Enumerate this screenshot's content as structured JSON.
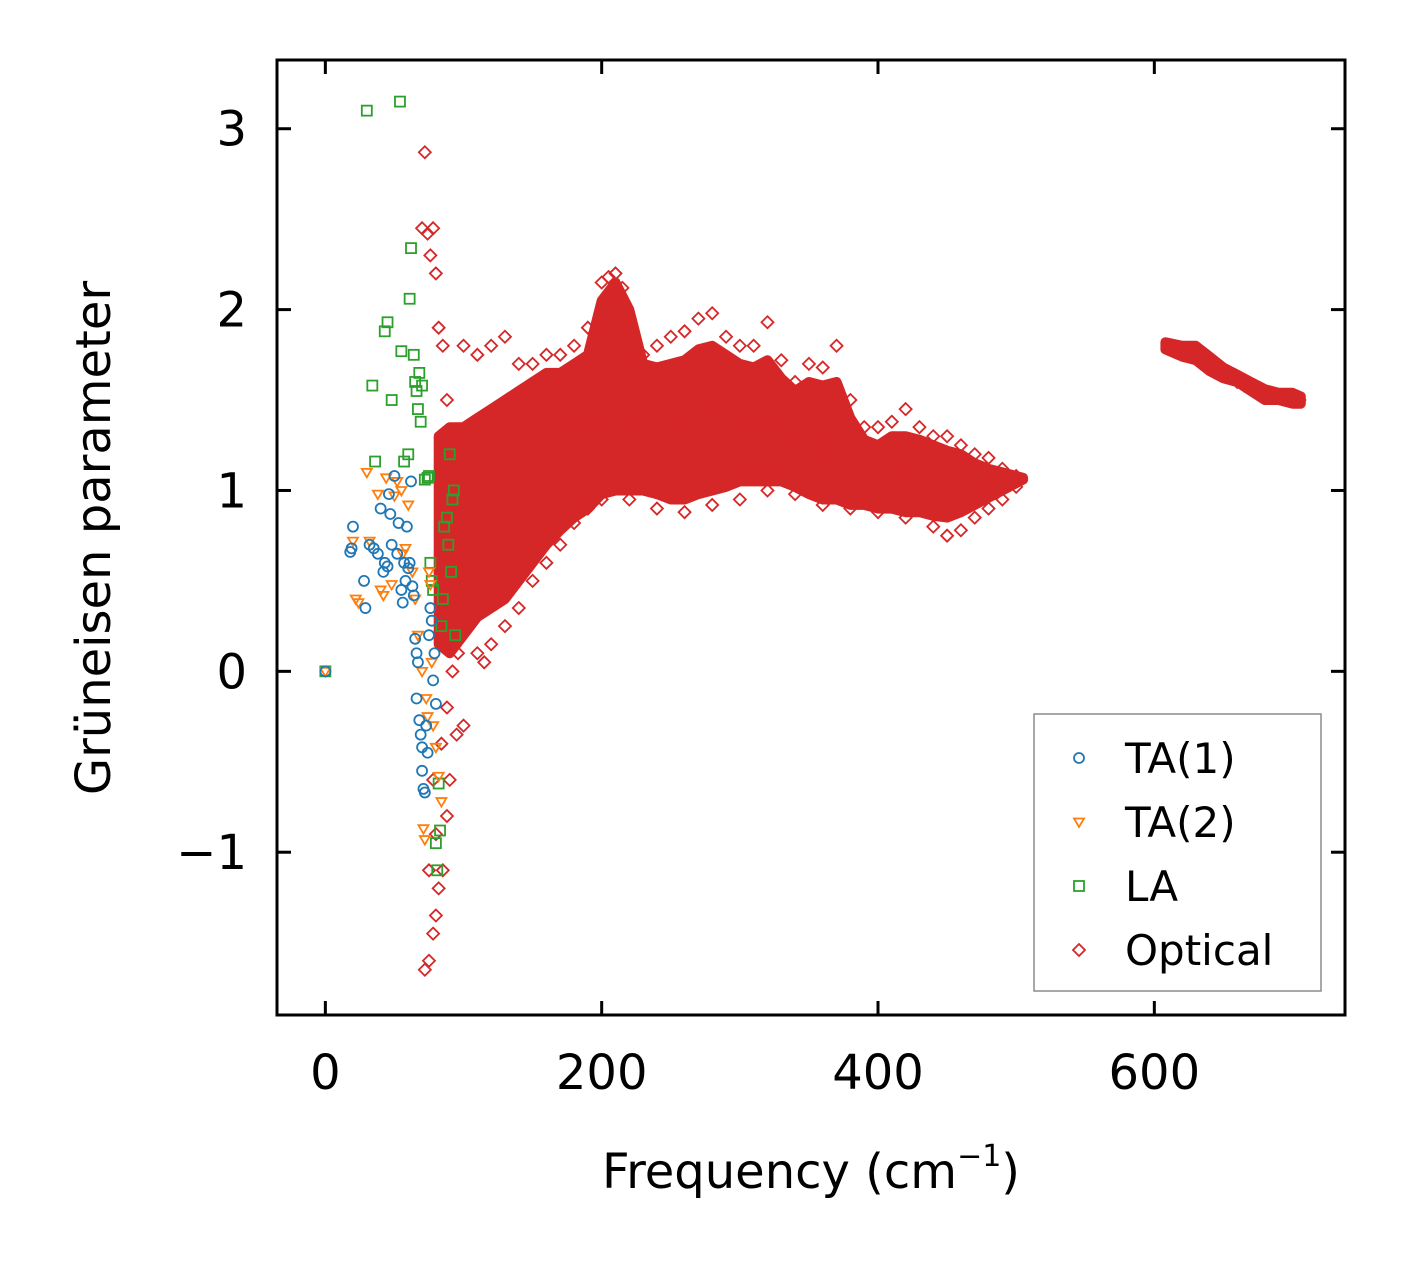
{
  "chart_data": {
    "type": "scatter",
    "title": "",
    "xlabel": "Frequency (cm",
    "xlabel_sup": "−1",
    "xlabel_end": ")",
    "ylabel": "Grüneisen parameter",
    "xlim": [
      -35,
      738
    ],
    "ylim": [
      -1.9,
      3.38
    ],
    "xticks": [
      0,
      200,
      400,
      600
    ],
    "xtick_labels": [
      "0",
      "200",
      "400",
      "600"
    ],
    "yticks": [
      -1,
      0,
      1,
      2,
      3
    ],
    "ytick_labels": [
      "−1",
      "0",
      "1",
      "2",
      "3"
    ],
    "grid": false,
    "legend_position": "lower-right",
    "series": [
      {
        "name": "TA(1)",
        "marker": "circle",
        "color": "#1f77b4",
        "points": [
          [
            0,
            0
          ],
          [
            18,
            0.66
          ],
          [
            19,
            0.68
          ],
          [
            20,
            0.8
          ],
          [
            28,
            0.5
          ],
          [
            29,
            0.35
          ],
          [
            32,
            0.7
          ],
          [
            35,
            0.68
          ],
          [
            38,
            0.65
          ],
          [
            40,
            0.9
          ],
          [
            42,
            0.55
          ],
          [
            43,
            0.6
          ],
          [
            45,
            0.58
          ],
          [
            46,
            0.98
          ],
          [
            47,
            0.87
          ],
          [
            48,
            0.7
          ],
          [
            50,
            1.08
          ],
          [
            52,
            0.65
          ],
          [
            53,
            0.82
          ],
          [
            55,
            0.45
          ],
          [
            56,
            0.38
          ],
          [
            57,
            0.6
          ],
          [
            58,
            0.5
          ],
          [
            59,
            0.8
          ],
          [
            60,
            0.57
          ],
          [
            61,
            0.6
          ],
          [
            62,
            1.05
          ],
          [
            63,
            0.47
          ],
          [
            64,
            0.42
          ],
          [
            65,
            0.18
          ],
          [
            66,
            0.1
          ],
          [
            66,
            -0.15
          ],
          [
            67,
            0.05
          ],
          [
            68,
            -0.27
          ],
          [
            69,
            -0.35
          ],
          [
            70,
            -0.42
          ],
          [
            70,
            -0.55
          ],
          [
            71,
            -0.65
          ],
          [
            72,
            -0.67
          ],
          [
            73,
            -0.3
          ],
          [
            74,
            -0.45
          ],
          [
            75,
            0.2
          ],
          [
            76,
            0.35
          ],
          [
            77,
            0.28
          ],
          [
            78,
            -0.05
          ],
          [
            79,
            0.1
          ],
          [
            80,
            -0.18
          ]
        ]
      },
      {
        "name": "TA(2)",
        "marker": "triangle-down",
        "color": "#ff7f0e",
        "points": [
          [
            0,
            0
          ],
          [
            20,
            0.72
          ],
          [
            22,
            0.4
          ],
          [
            24,
            0.38
          ],
          [
            30,
            1.1
          ],
          [
            32,
            0.72
          ],
          [
            38,
            0.98
          ],
          [
            40,
            0.45
          ],
          [
            42,
            0.42
          ],
          [
            44,
            1.07
          ],
          [
            48,
            0.48
          ],
          [
            50,
            0.97
          ],
          [
            52,
            1.05
          ],
          [
            55,
            1.0
          ],
          [
            56,
            0.65
          ],
          [
            58,
            0.68
          ],
          [
            60,
            0.92
          ],
          [
            63,
            0.55
          ],
          [
            65,
            0.4
          ],
          [
            67,
            0.2
          ],
          [
            70,
            0.0
          ],
          [
            71,
            -0.87
          ],
          [
            72,
            -0.93
          ],
          [
            73,
            -0.15
          ],
          [
            74,
            -0.25
          ],
          [
            75,
            0.55
          ],
          [
            76,
            0.48
          ],
          [
            77,
            0.05
          ],
          [
            78,
            -0.3
          ],
          [
            80,
            -0.42
          ],
          [
            82,
            -0.58
          ],
          [
            84,
            -0.72
          ]
        ]
      },
      {
        "name": "LA",
        "marker": "square",
        "color": "#2ca02c",
        "points": [
          [
            0,
            0
          ],
          [
            30,
            3.1
          ],
          [
            34,
            1.58
          ],
          [
            36,
            1.16
          ],
          [
            43,
            1.88
          ],
          [
            45,
            1.93
          ],
          [
            48,
            1.5
          ],
          [
            54,
            3.15
          ],
          [
            55,
            1.77
          ],
          [
            57,
            1.16
          ],
          [
            60,
            1.2
          ],
          [
            61,
            2.06
          ],
          [
            62,
            2.34
          ],
          [
            64,
            1.75
          ],
          [
            65,
            1.6
          ],
          [
            66,
            1.55
          ],
          [
            67,
            1.45
          ],
          [
            68,
            1.65
          ],
          [
            69,
            1.38
          ],
          [
            70,
            1.58
          ],
          [
            72,
            1.06
          ],
          [
            74,
            1.07
          ],
          [
            75,
            1.08
          ],
          [
            76,
            0.6
          ],
          [
            77,
            0.5
          ],
          [
            78,
            0.45
          ],
          [
            80,
            -0.95
          ],
          [
            81,
            -1.1
          ],
          [
            82,
            -0.62
          ],
          [
            83,
            -0.88
          ],
          [
            84,
            0.25
          ],
          [
            85,
            0.4
          ],
          [
            86,
            0.8
          ],
          [
            88,
            0.85
          ],
          [
            89,
            0.7
          ],
          [
            90,
            1.2
          ],
          [
            91,
            0.55
          ],
          [
            92,
            0.95
          ],
          [
            93,
            1.0
          ],
          [
            94,
            0.2
          ]
        ]
      },
      {
        "name": "Optical",
        "marker": "diamond",
        "color": "#d62728",
        "points": [
          [
            72,
            2.87
          ],
          [
            70,
            2.45
          ],
          [
            74,
            2.42
          ],
          [
            76,
            2.3
          ],
          [
            78,
            2.45
          ],
          [
            80,
            2.2
          ],
          [
            82,
            1.9
          ],
          [
            85,
            1.8
          ],
          [
            88,
            1.5
          ],
          [
            90,
            1.3
          ],
          [
            72,
            -1.65
          ],
          [
            75,
            -1.6
          ],
          [
            78,
            -1.45
          ],
          [
            80,
            -1.35
          ],
          [
            82,
            -1.2
          ],
          [
            85,
            -1.1
          ],
          [
            88,
            -0.8
          ],
          [
            90,
            -0.6
          ],
          [
            95,
            -0.35
          ],
          [
            100,
            -0.3
          ],
          [
            75,
            -1.1
          ],
          [
            80,
            -0.9
          ],
          [
            78,
            -0.6
          ],
          [
            84,
            -0.4
          ],
          [
            88,
            -0.2
          ],
          [
            92,
            0.0
          ],
          [
            96,
            0.1
          ],
          [
            100,
            1.8
          ],
          [
            110,
            1.75
          ],
          [
            120,
            1.8
          ],
          [
            130,
            1.85
          ],
          [
            140,
            1.7
          ],
          [
            150,
            1.7
          ],
          [
            160,
            1.75
          ],
          [
            170,
            1.75
          ],
          [
            180,
            1.8
          ],
          [
            190,
            1.9
          ],
          [
            200,
            2.15
          ],
          [
            205,
            2.18
          ],
          [
            210,
            2.2
          ],
          [
            215,
            2.12
          ],
          [
            220,
            1.9
          ],
          [
            230,
            1.75
          ],
          [
            240,
            1.8
          ],
          [
            250,
            1.85
          ],
          [
            260,
            1.88
          ],
          [
            270,
            1.95
          ],
          [
            280,
            1.98
          ],
          [
            290,
            1.85
          ],
          [
            300,
            1.8
          ],
          [
            310,
            1.8
          ],
          [
            320,
            1.93
          ],
          [
            330,
            1.72
          ],
          [
            340,
            1.6
          ],
          [
            350,
            1.7
          ],
          [
            360,
            1.68
          ],
          [
            370,
            1.8
          ],
          [
            380,
            1.5
          ],
          [
            390,
            1.35
          ],
          [
            400,
            1.35
          ],
          [
            410,
            1.38
          ],
          [
            420,
            1.45
          ],
          [
            430,
            1.35
          ],
          [
            440,
            1.3
          ],
          [
            450,
            1.3
          ],
          [
            460,
            1.25
          ],
          [
            470,
            1.2
          ],
          [
            480,
            1.18
          ],
          [
            490,
            1.12
          ],
          [
            500,
            1.08
          ],
          [
            110,
            0.1
          ],
          [
            115,
            0.05
          ],
          [
            120,
            0.15
          ],
          [
            130,
            0.25
          ],
          [
            140,
            0.35
          ],
          [
            150,
            0.5
          ],
          [
            160,
            0.6
          ],
          [
            170,
            0.7
          ],
          [
            180,
            0.82
          ],
          [
            190,
            0.9
          ],
          [
            200,
            0.95
          ],
          [
            220,
            0.95
          ],
          [
            240,
            0.9
          ],
          [
            260,
            0.88
          ],
          [
            280,
            0.92
          ],
          [
            300,
            0.95
          ],
          [
            320,
            1.0
          ],
          [
            340,
            0.98
          ],
          [
            360,
            0.92
          ],
          [
            380,
            0.9
          ],
          [
            400,
            0.88
          ],
          [
            420,
            0.85
          ],
          [
            440,
            0.8
          ],
          [
            450,
            0.75
          ],
          [
            460,
            0.78
          ],
          [
            470,
            0.85
          ],
          [
            480,
            0.9
          ],
          [
            490,
            0.95
          ],
          [
            500,
            1.02
          ],
          [
            140,
            1.3
          ],
          [
            160,
            1.3
          ],
          [
            180,
            1.35
          ],
          [
            200,
            1.35
          ],
          [
            220,
            1.4
          ],
          [
            240,
            1.4
          ],
          [
            260,
            1.35
          ],
          [
            280,
            1.45
          ],
          [
            300,
            1.4
          ],
          [
            320,
            1.35
          ],
          [
            340,
            1.3
          ],
          [
            360,
            1.25
          ],
          [
            380,
            1.2
          ],
          [
            400,
            1.12
          ],
          [
            420,
            1.1
          ],
          [
            440,
            1.05
          ],
          [
            460,
            1.05
          ],
          [
            480,
            1.05
          ],
          [
            610,
            1.8
          ],
          [
            615,
            1.79
          ],
          [
            620,
            1.78
          ],
          [
            625,
            1.76
          ],
          [
            630,
            1.75
          ],
          [
            635,
            1.72
          ],
          [
            640,
            1.68
          ],
          [
            645,
            1.66
          ],
          [
            650,
            1.64
          ],
          [
            655,
            1.62
          ],
          [
            660,
            1.6
          ],
          [
            665,
            1.58
          ],
          [
            670,
            1.56
          ],
          [
            675,
            1.54
          ],
          [
            680,
            1.52
          ],
          [
            695,
            1.52
          ],
          [
            700,
            1.51
          ],
          [
            705,
            1.5
          ]
        ]
      }
    ],
    "optical_bands": [
      {
        "note": "dense cloud upper/lower envelope in data units",
        "x": [
          82,
          90,
          100,
          110,
          120,
          130,
          140,
          150,
          160,
          170,
          180,
          190,
          200,
          210,
          220,
          230,
          240,
          250,
          260,
          270,
          280,
          290,
          300,
          310,
          320,
          330,
          340,
          350,
          360,
          370,
          380,
          390,
          400,
          410,
          420,
          430,
          440,
          450,
          460,
          470,
          480,
          490,
          500,
          505
        ],
        "upper": [
          1.3,
          1.35,
          1.35,
          1.4,
          1.45,
          1.5,
          1.55,
          1.6,
          1.65,
          1.65,
          1.7,
          1.75,
          2.05,
          2.15,
          2.0,
          1.7,
          1.68,
          1.7,
          1.72,
          1.78,
          1.8,
          1.75,
          1.7,
          1.68,
          1.72,
          1.62,
          1.55,
          1.6,
          1.58,
          1.6,
          1.4,
          1.28,
          1.25,
          1.3,
          1.3,
          1.28,
          1.25,
          1.22,
          1.2,
          1.15,
          1.12,
          1.1,
          1.08,
          1.07
        ],
        "lower": [
          0.15,
          0.1,
          0.2,
          0.3,
          0.35,
          0.4,
          0.5,
          0.6,
          0.7,
          0.78,
          0.85,
          0.9,
          0.98,
          1.0,
          1.0,
          1.0,
          0.98,
          0.95,
          0.95,
          0.98,
          1.0,
          1.02,
          1.05,
          1.05,
          1.05,
          1.05,
          1.02,
          0.98,
          0.95,
          0.95,
          0.92,
          0.92,
          0.9,
          0.9,
          0.88,
          0.88,
          0.86,
          0.85,
          0.88,
          0.92,
          0.96,
          1.0,
          1.04,
          1.06
        ]
      },
      {
        "note": "high-frequency branch",
        "x": [
          608,
          620,
          630,
          640,
          650,
          660,
          670,
          680,
          690,
          700,
          706
        ],
        "upper": [
          1.82,
          1.8,
          1.8,
          1.74,
          1.68,
          1.64,
          1.6,
          1.56,
          1.54,
          1.54,
          1.52
        ],
        "lower": [
          1.78,
          1.74,
          1.72,
          1.66,
          1.62,
          1.6,
          1.55,
          1.5,
          1.5,
          1.48,
          1.48
        ]
      }
    ]
  }
}
